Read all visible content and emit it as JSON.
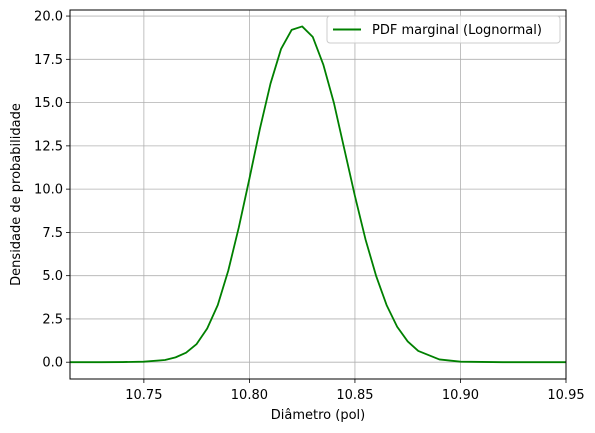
{
  "chart_data": {
    "type": "line",
    "xlabel": "Diâmetro (pol)",
    "ylabel": "Densidade de probabilidade",
    "xlim": [
      10.715,
      10.95
    ],
    "ylim": [
      -0.97,
      20.35
    ],
    "xticks": [
      10.75,
      10.8,
      10.85,
      10.9,
      10.95
    ],
    "xtick_labels": [
      "10.75",
      "10.80",
      "10.85",
      "10.90",
      "10.95"
    ],
    "yticks": [
      0.0,
      2.5,
      5.0,
      7.5,
      10.0,
      12.5,
      15.0,
      17.5,
      20.0
    ],
    "ytick_labels": [
      "0.0",
      "2.5",
      "5.0",
      "7.5",
      "10.0",
      "12.5",
      "15.0",
      "17.5",
      "20.0"
    ],
    "grid": true,
    "legend_position": "upper right",
    "series": [
      {
        "name": "PDF marginal (Lognormal)",
        "color": "#008000",
        "x": [
          10.715,
          10.73,
          10.74,
          10.75,
          10.76,
          10.765,
          10.77,
          10.775,
          10.78,
          10.785,
          10.79,
          10.795,
          10.8,
          10.805,
          10.81,
          10.815,
          10.82,
          10.825,
          10.83,
          10.835,
          10.84,
          10.845,
          10.85,
          10.855,
          10.86,
          10.865,
          10.87,
          10.875,
          10.88,
          10.89,
          10.9,
          10.92,
          10.95
        ],
        "y": [
          0.0,
          0.0,
          0.01,
          0.03,
          0.13,
          0.28,
          0.55,
          1.05,
          1.95,
          3.3,
          5.3,
          7.8,
          10.6,
          13.5,
          16.1,
          18.1,
          19.2,
          19.4,
          18.8,
          17.2,
          15.0,
          12.3,
          9.6,
          7.1,
          5.0,
          3.3,
          2.05,
          1.2,
          0.65,
          0.16,
          0.03,
          0.0,
          0.0
        ]
      }
    ]
  }
}
